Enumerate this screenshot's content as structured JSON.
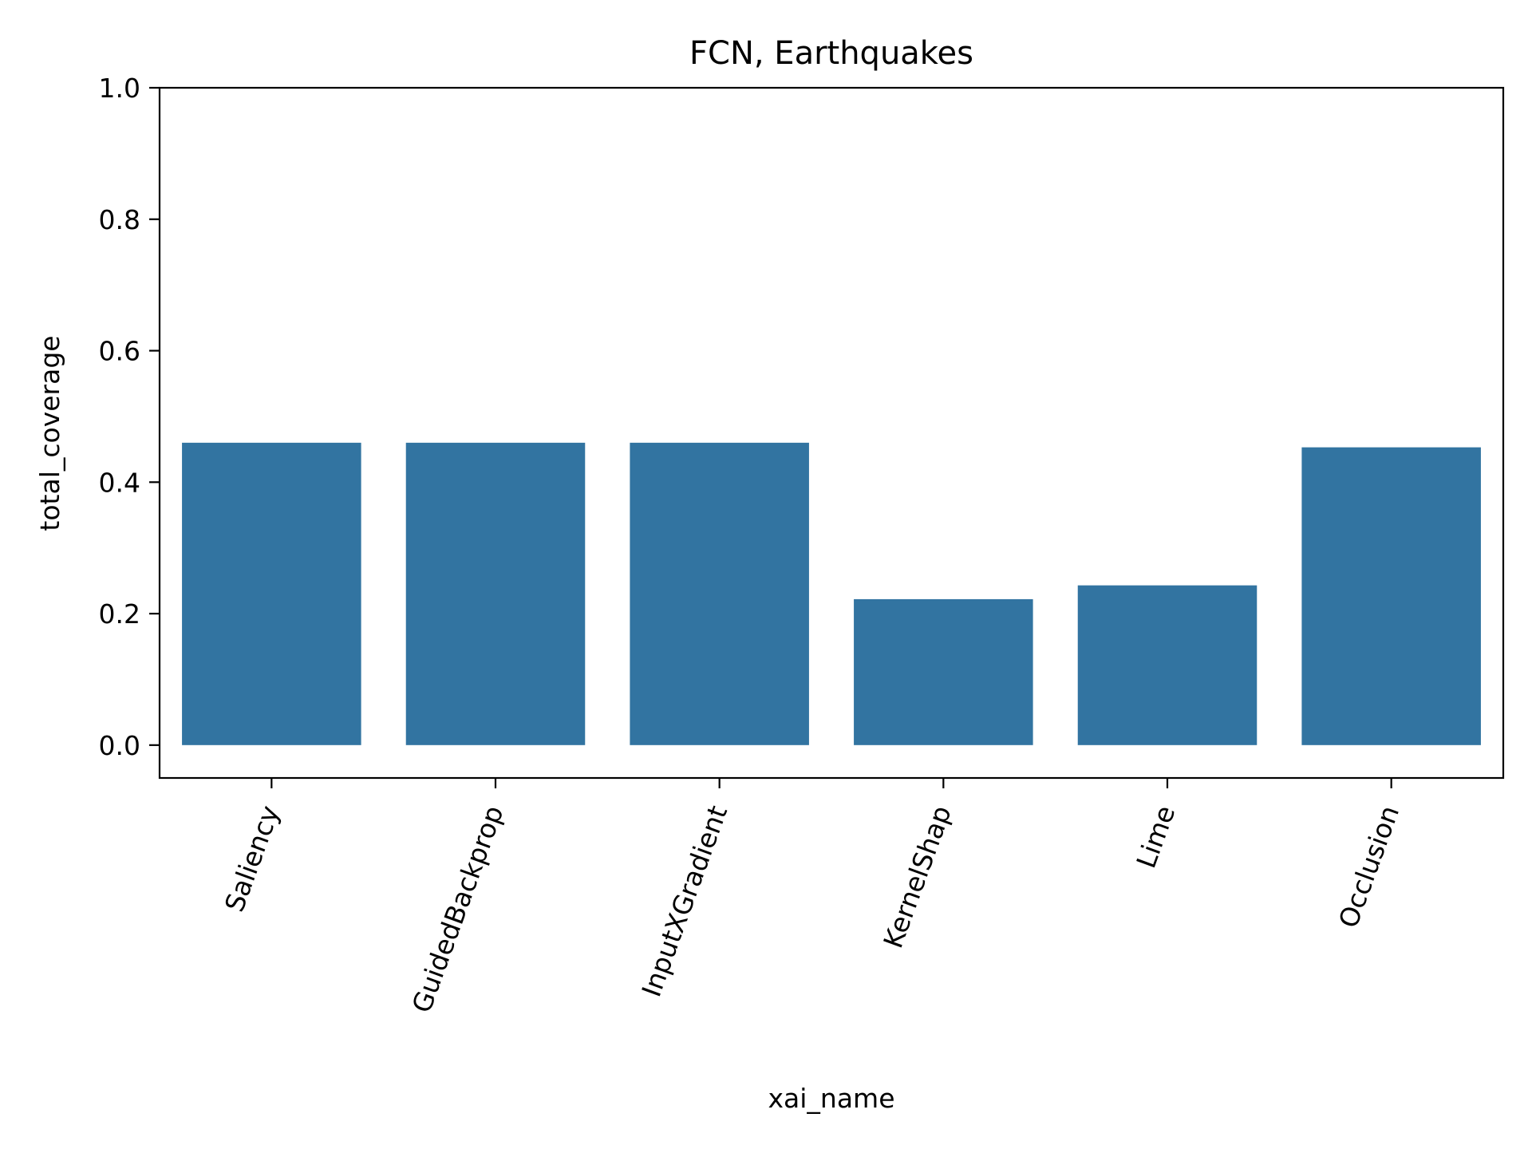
{
  "chart_data": {
    "type": "bar",
    "title": "FCN, Earthquakes",
    "xlabel": "xai_name",
    "ylabel": "total_coverage",
    "categories": [
      "Saliency",
      "GuidedBackprop",
      "InputXGradient",
      "KernelShap",
      "Lime",
      "Occlusion"
    ],
    "values": [
      0.46,
      0.46,
      0.46,
      0.222,
      0.243,
      0.453
    ],
    "ylim": [
      -0.05,
      1.0
    ],
    "yticks": [
      0.0,
      0.2,
      0.4,
      0.6,
      0.8,
      1.0
    ],
    "ytick_labels": [
      "0.0",
      "0.2",
      "0.4",
      "0.6",
      "0.8",
      "1.0"
    ],
    "bar_color": "#3274a1",
    "grid": false,
    "legend": "none",
    "xtick_rotation": "70 degrees"
  }
}
